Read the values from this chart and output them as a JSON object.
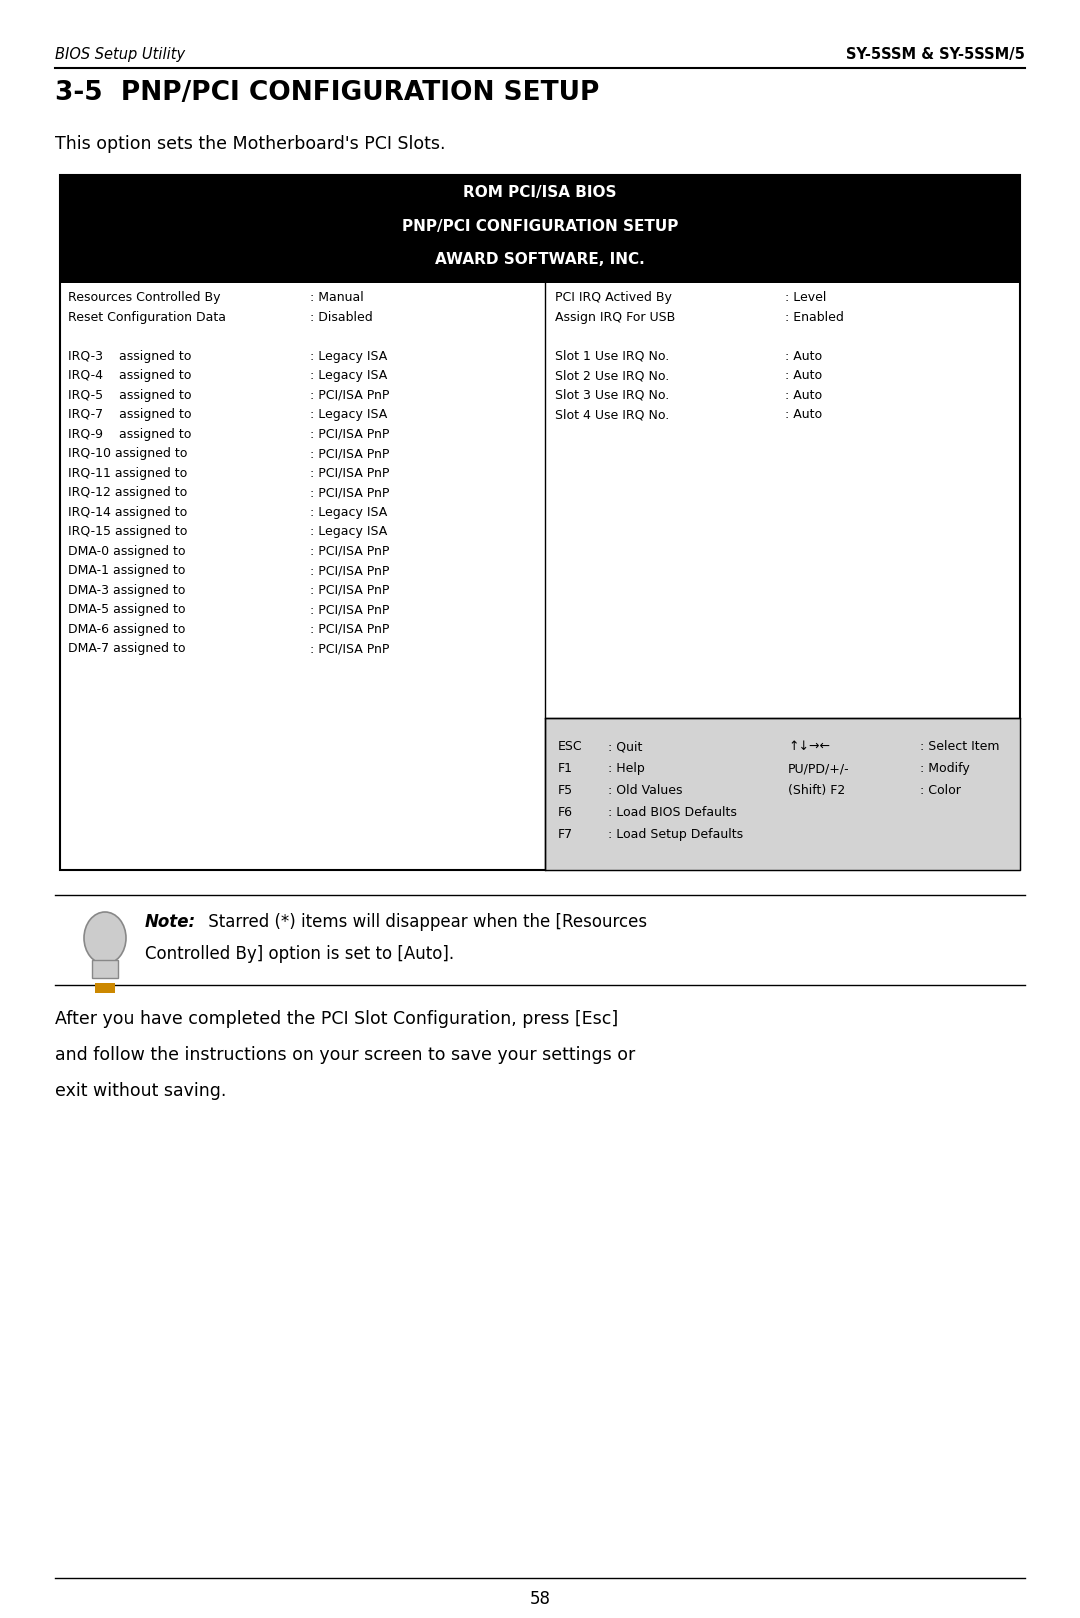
{
  "header_left": "BIOS Setup Utility",
  "header_right": "SY-5SSM & SY-5SSM/5",
  "title": "3-5  PNP/PCI CONFIGURATION SETUP",
  "subtitle": "This option sets the Motherboard's PCI Slots.",
  "bios_header_line1": "ROM PCI/ISA BIOS",
  "bios_header_line2": "PNP/PCI CONFIGURATION SETUP",
  "bios_header_line3": "AWARD SOFTWARE, INC.",
  "left_col": [
    [
      "Resources Controlled By",
      ": Manual"
    ],
    [
      "Reset Configuration Data",
      ": Disabled"
    ],
    [
      "",
      ""
    ],
    [
      "IRQ-3    assigned to",
      ": Legacy ISA"
    ],
    [
      "IRQ-4    assigned to",
      ": Legacy ISA"
    ],
    [
      "IRQ-5    assigned to",
      ": PCI/ISA PnP"
    ],
    [
      "IRQ-7    assigned to",
      ": Legacy ISA"
    ],
    [
      "IRQ-9    assigned to",
      ": PCI/ISA PnP"
    ],
    [
      "IRQ-10 assigned to",
      ": PCI/ISA PnP"
    ],
    [
      "IRQ-11 assigned to",
      ": PCI/ISA PnP"
    ],
    [
      "IRQ-12 assigned to",
      ": PCI/ISA PnP"
    ],
    [
      "IRQ-14 assigned to",
      ": Legacy ISA"
    ],
    [
      "IRQ-15 assigned to",
      ": Legacy ISA"
    ],
    [
      "DMA-0 assigned to",
      ": PCI/ISA PnP"
    ],
    [
      "DMA-1 assigned to",
      ": PCI/ISA PnP"
    ],
    [
      "DMA-3 assigned to",
      ": PCI/ISA PnP"
    ],
    [
      "DMA-5 assigned to",
      ": PCI/ISA PnP"
    ],
    [
      "DMA-6 assigned to",
      ": PCI/ISA PnP"
    ],
    [
      "DMA-7 assigned to",
      ": PCI/ISA PnP"
    ]
  ],
  "right_col_top": [
    [
      "PCI IRQ Actived By",
      ": Level"
    ],
    [
      "Assign IRQ For USB",
      ": Enabled"
    ],
    [
      "",
      ""
    ],
    [
      "Slot 1 Use IRQ No.",
      ": Auto"
    ],
    [
      "Slot 2 Use IRQ No.",
      ": Auto"
    ],
    [
      "Slot 3 Use IRQ No.",
      ": Auto"
    ],
    [
      "Slot 4 Use IRQ No.",
      ": Auto"
    ]
  ],
  "right_col_bottom": [
    [
      "ESC",
      ": Quit",
      "↑↓→←",
      ": Select Item"
    ],
    [
      "F1",
      ": Help",
      "PU/PD/+/-",
      ": Modify"
    ],
    [
      "F5",
      ": Old Values",
      "(Shift) F2",
      ": Color"
    ],
    [
      "F6",
      ": Load BIOS Defaults",
      "",
      ""
    ],
    [
      "F7",
      ": Load Setup Defaults",
      "",
      ""
    ]
  ],
  "note_bold": "Note:",
  "note_line1": " Starred (*) items will disappear when the [Resources",
  "note_line2": "Controlled By] option is set to [Auto].",
  "footer_line1": "After you have completed the PCI Slot Configuration, press [Esc]",
  "footer_line2": "and follow the instructions on your screen to save your settings or",
  "footer_line3": "exit without saving.",
  "page_number": "58",
  "bg_color": "#ffffff",
  "header_bg": "#000000",
  "header_fg": "#ffffff",
  "box_bg": "#d3d3d3",
  "border_color": "#000000",
  "text_color": "#000000"
}
